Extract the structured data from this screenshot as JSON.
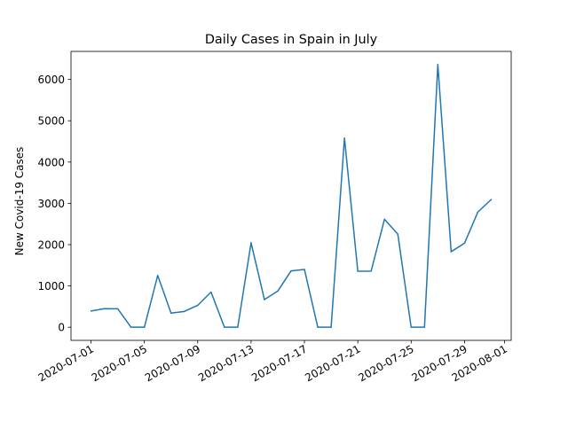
{
  "chart_data": {
    "type": "line",
    "title": "Daily Cases in Spain in July",
    "xlabel": "",
    "ylabel": "New Covid-19 Cases",
    "x": [
      "2020-07-01",
      "2020-07-02",
      "2020-07-03",
      "2020-07-04",
      "2020-07-05",
      "2020-07-06",
      "2020-07-07",
      "2020-07-08",
      "2020-07-09",
      "2020-07-10",
      "2020-07-11",
      "2020-07-12",
      "2020-07-13",
      "2020-07-14",
      "2020-07-15",
      "2020-07-16",
      "2020-07-17",
      "2020-07-18",
      "2020-07-19",
      "2020-07-20",
      "2020-07-21",
      "2020-07-22",
      "2020-07-23",
      "2020-07-24",
      "2020-07-25",
      "2020-07-26",
      "2020-07-27",
      "2020-07-28",
      "2020-07-29",
      "2020-07-30",
      "2020-07-31"
    ],
    "series": [
      {
        "color": "#1f77b4",
        "values": [
          394,
          449,
          447,
          0,
          0,
          1253,
          341,
          383,
          530,
          852,
          0,
          0,
          2045,
          670,
          875,
          1365,
          1400,
          0,
          0,
          4581,
          1357,
          1358,
          2615,
          2255,
          0,
          0,
          6361,
          1829,
          2034,
          2789,
          3092
        ]
      }
    ],
    "xlim": [
      "2020-06-29T12:00",
      "2020-08-01T12:00"
    ],
    "ylim": [
      -318,
      6679
    ],
    "xticks": [
      "2020-07-01",
      "2020-07-05",
      "2020-07-09",
      "2020-07-13",
      "2020-07-17",
      "2020-07-21",
      "2020-07-25",
      "2020-07-29",
      "2020-08-01"
    ],
    "yticks": [
      0,
      1000,
      2000,
      3000,
      4000,
      5000,
      6000
    ],
    "grid": false,
    "legend": "none"
  }
}
